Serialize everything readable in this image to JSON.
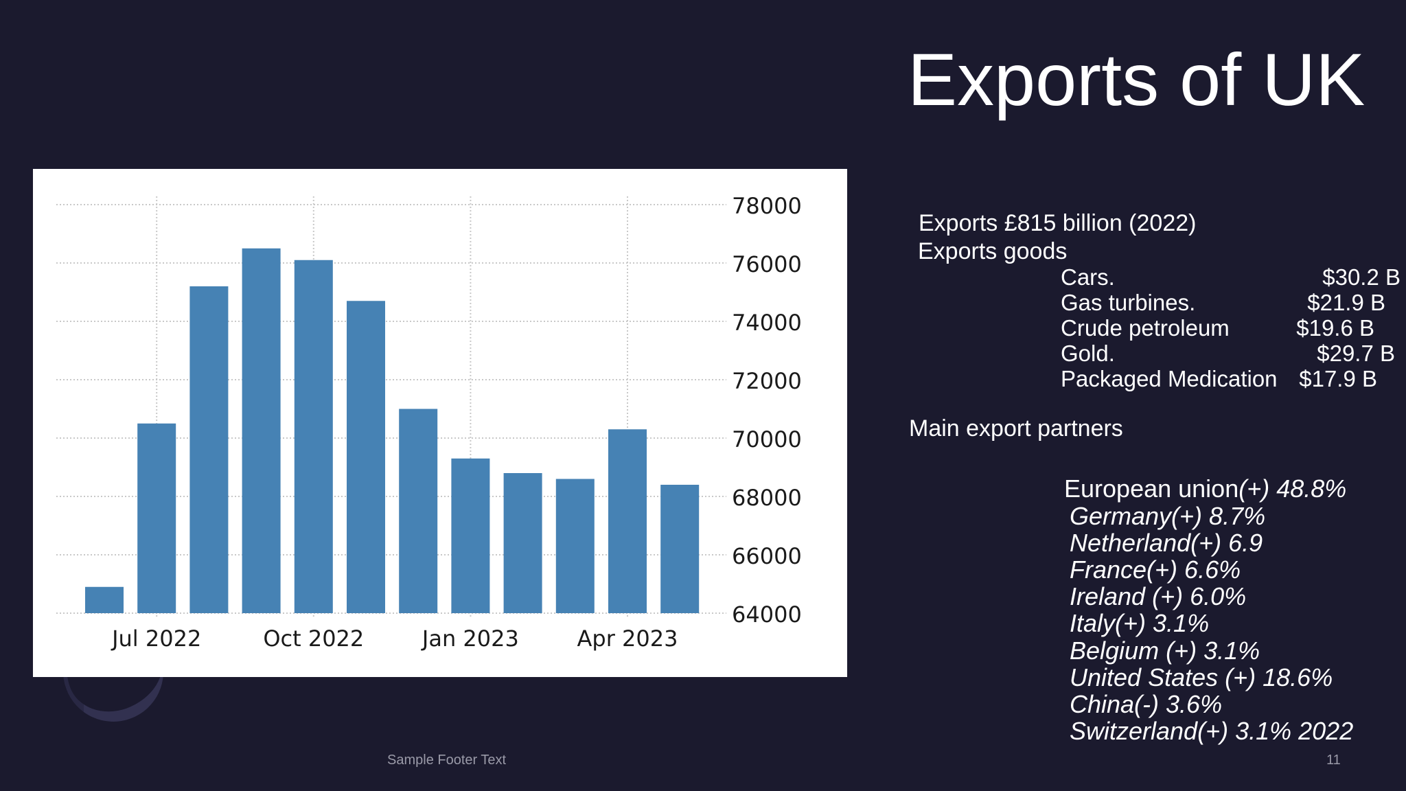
{
  "slide": {
    "title": "Exports of UK",
    "exports_line": "Exports £815 billion (2022)",
    "goods_heading": "Exports  goods",
    "goods": [
      {
        "name": "Cars.",
        "value": "$30.2 B"
      },
      {
        "name": "Gas turbines.",
        "value": "$21.9 B"
      },
      {
        "name": "Crude petroleum",
        "value": "$19.6 B"
      },
      {
        "name": "Gold.",
        "value": "$29.7 B"
      },
      {
        "name": "Packaged Medication",
        "value": "$17.9 B"
      }
    ],
    "partners_heading": "Main export partners",
    "partners": [
      {
        "name": "European union",
        "share": "(+) 48.8%"
      },
      {
        "name": "",
        "share": "Germany(+) 8.7%"
      },
      {
        "name": "",
        "share": "Netherland(+) 6.9"
      },
      {
        "name": "",
        "share": "France(+) 6.6%"
      },
      {
        "name": "",
        "share": "Ireland (+) 6.0%"
      },
      {
        "name": "",
        "share": "Italy(+) 3.1%"
      },
      {
        "name": "",
        "share": "Belgium (+) 3.1%"
      },
      {
        "name": "",
        "share": "United States (+) 18.6%"
      },
      {
        "name": "",
        "share": "China(-) 3.6%"
      },
      {
        "name": "",
        "share": "Switzerland(+) 3.1% 2022"
      }
    ],
    "footer": "Sample Footer Text",
    "page_number": "11"
  },
  "chart_data": {
    "type": "bar",
    "title": "",
    "xlabel": "",
    "ylabel": "",
    "ylim": [
      64000,
      78000
    ],
    "yticks": [
      "64000",
      "66000",
      "68000",
      "70000",
      "72000",
      "74000",
      "76000",
      "78000"
    ],
    "xticks": [
      "Jul 2022",
      "Oct 2022",
      "Jan 2023",
      "Apr 2023"
    ],
    "categories": [
      "Jun 2022",
      "Jul 2022",
      "Aug 2022",
      "Sep 2022",
      "Oct 2022",
      "Nov 2022",
      "Dec 2022",
      "Jan 2023",
      "Feb 2023",
      "Mar 2023",
      "Apr 2023",
      "May 2023"
    ],
    "values": [
      64900,
      70500,
      75200,
      76500,
      76100,
      74700,
      71000,
      69300,
      68800,
      68600,
      70300,
      68400
    ],
    "bar_color": "#4682b4",
    "grid": true,
    "y_axis_side": "right"
  }
}
